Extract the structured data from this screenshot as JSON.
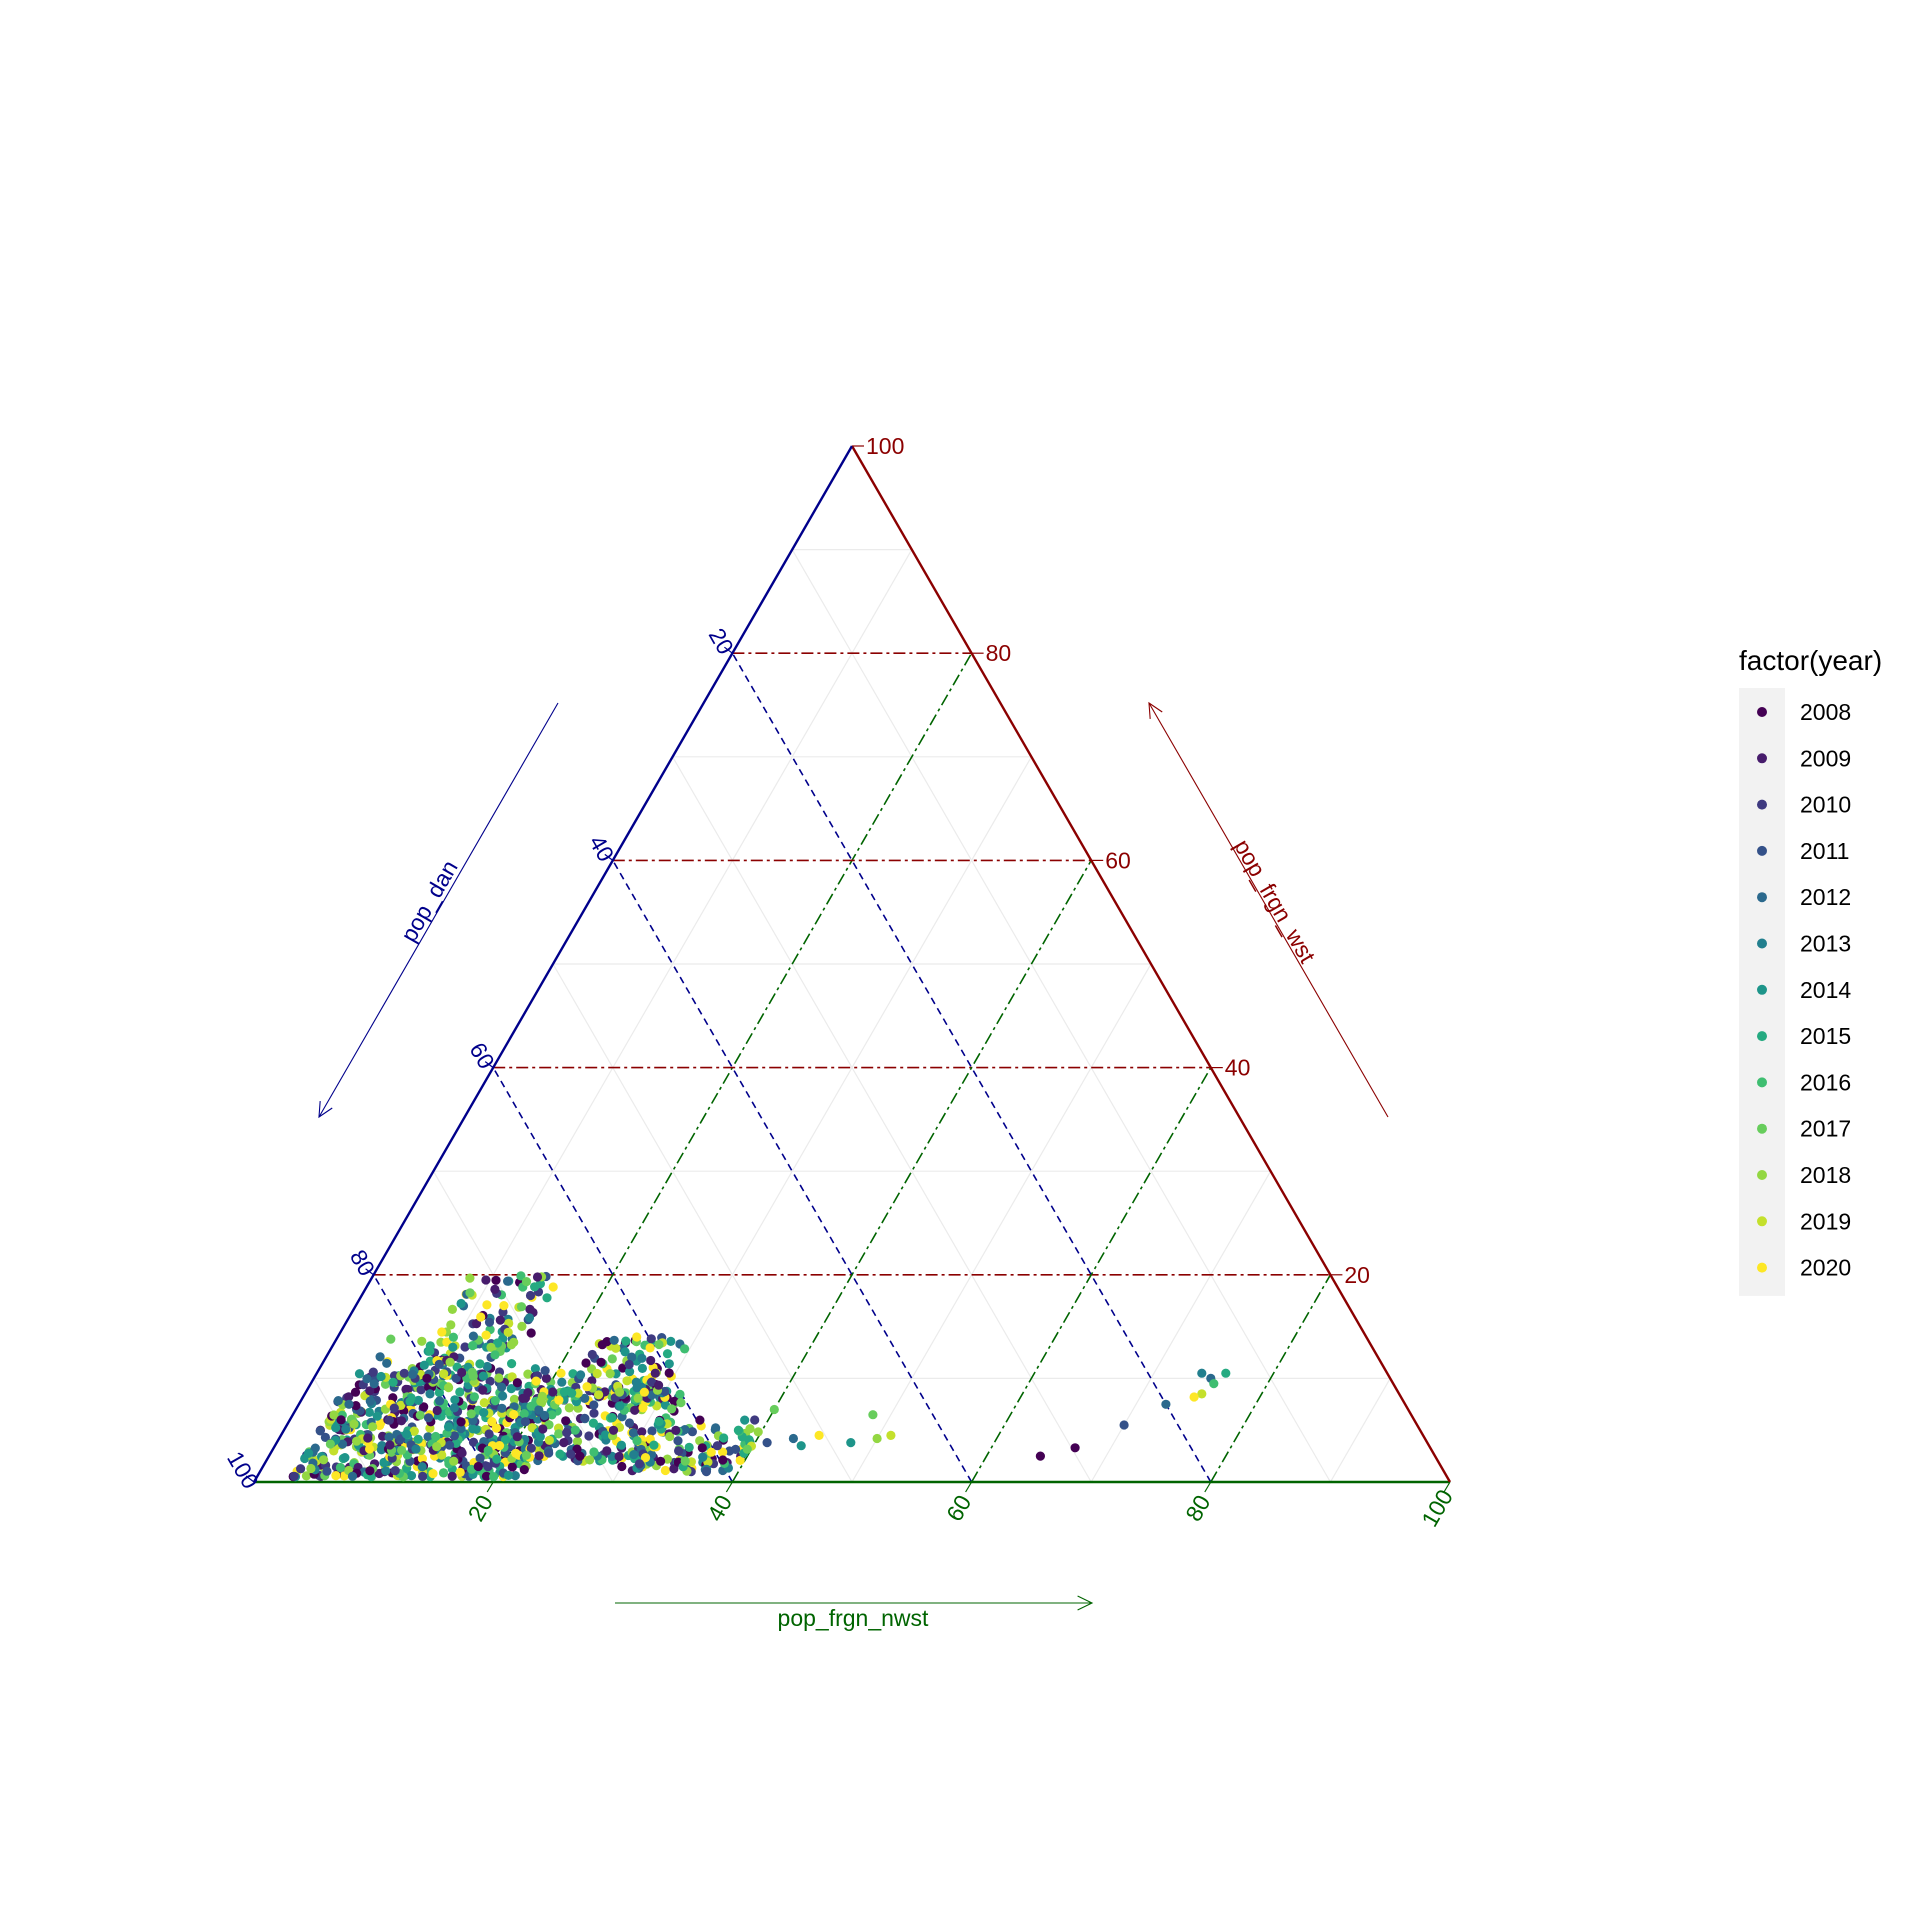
{
  "chart_data": {
    "type": "scatter",
    "subtype": "ternary",
    "title": "",
    "axes": {
      "left": {
        "label": "pop_dan",
        "color": "#00008B",
        "ticks": [
          "20",
          "40",
          "60",
          "80",
          "100"
        ]
      },
      "right": {
        "label": "pop_frgn_wst",
        "color": "#8B0000",
        "ticks": [
          "20",
          "40",
          "60",
          "80",
          "100"
        ]
      },
      "bottom": {
        "label": "pop_frgn_nwst",
        "color": "#006400",
        "ticks": [
          "20",
          "40",
          "60",
          "80",
          "100"
        ]
      }
    },
    "grid": true,
    "legend": {
      "title": "factor(year)",
      "position": "right",
      "entries": [
        {
          "label": "2008",
          "color": "#440154"
        },
        {
          "label": "2009",
          "color": "#471C6C"
        },
        {
          "label": "2010",
          "color": "#3F3A80"
        },
        {
          "label": "2011",
          "color": "#345189"
        },
        {
          "label": "2012",
          "color": "#2B698D"
        },
        {
          "label": "2013",
          "color": "#227F8E"
        },
        {
          "label": "2014",
          "color": "#1E958A"
        },
        {
          "label": "2015",
          "color": "#25AA81"
        },
        {
          "label": "2016",
          "color": "#3FBE71"
        },
        {
          "label": "2017",
          "color": "#67CD5C"
        },
        {
          "label": "2018",
          "color": "#93D742"
        },
        {
          "label": "2019",
          "color": "#C4E02C"
        },
        {
          "label": "2020",
          "color": "#FDE725"
        }
      ]
    },
    "series": [
      {
        "year_index": 0,
        "points": [
          [
            64.5,
            2.5
          ],
          [
            67,
            3.3
          ],
          [
            30,
            1.5
          ],
          [
            33,
            2
          ],
          [
            26,
            2.5
          ],
          [
            22,
            1.2
          ],
          [
            18,
            1.5
          ]
        ]
      },
      {
        "year_index": 1,
        "points": [
          [
            24,
            3.8
          ],
          [
            28,
            3
          ],
          [
            16,
            2.8
          ]
        ]
      },
      {
        "year_index": 2,
        "points": [
          [
            37,
            3.5
          ],
          [
            34,
            3
          ]
        ]
      },
      {
        "year_index": 3,
        "points": [
          [
            70,
            5.5
          ],
          [
            41,
            3.8
          ]
        ]
      },
      {
        "year_index": 4,
        "points": [
          [
            72.5,
            7.5
          ],
          [
            75,
            10
          ],
          [
            43,
            4.2
          ]
        ]
      },
      {
        "year_index": 5,
        "points": [
          [
            74,
            10.5
          ]
        ]
      },
      {
        "year_index": 6,
        "points": [
          [
            44,
            3.5
          ],
          [
            48,
            3.8
          ]
        ]
      },
      {
        "year_index": 7,
        "points": [
          [
            76,
            10.5
          ],
          [
            38,
            5
          ]
        ]
      },
      {
        "year_index": 8,
        "points": [
          [
            75.5,
            9.5
          ]
        ]
      },
      {
        "year_index": 9,
        "points": [
          [
            40,
            7
          ],
          [
            48.5,
            6.5
          ]
        ]
      },
      {
        "year_index": 10,
        "points": [
          [
            50,
            4.2
          ]
        ]
      },
      {
        "year_index": 11,
        "points": [
          [
            75,
            8.5
          ],
          [
            51,
            4.5
          ]
        ]
      },
      {
        "year_index": 12,
        "points": [
          [
            74.5,
            8.2
          ],
          [
            45,
            4.5
          ],
          [
            25,
            14
          ]
        ]
      }
    ],
    "cluster": {
      "ranges": [
        {
          "x": [
            3,
            22
          ],
          "y": [
            0.5,
            11
          ]
        },
        {
          "x": [
            4,
            15
          ],
          "y": [
            3,
            14
          ]
        },
        {
          "x": [
            8,
            16
          ],
          "y": [
            10,
            20
          ]
        },
        {
          "x": [
            18,
            32
          ],
          "y": [
            2,
            9
          ]
        },
        {
          "x": [
            22,
            30
          ],
          "y": [
            8,
            14
          ]
        },
        {
          "x": [
            30,
            40
          ],
          "y": [
            1,
            6
          ]
        }
      ]
    }
  }
}
